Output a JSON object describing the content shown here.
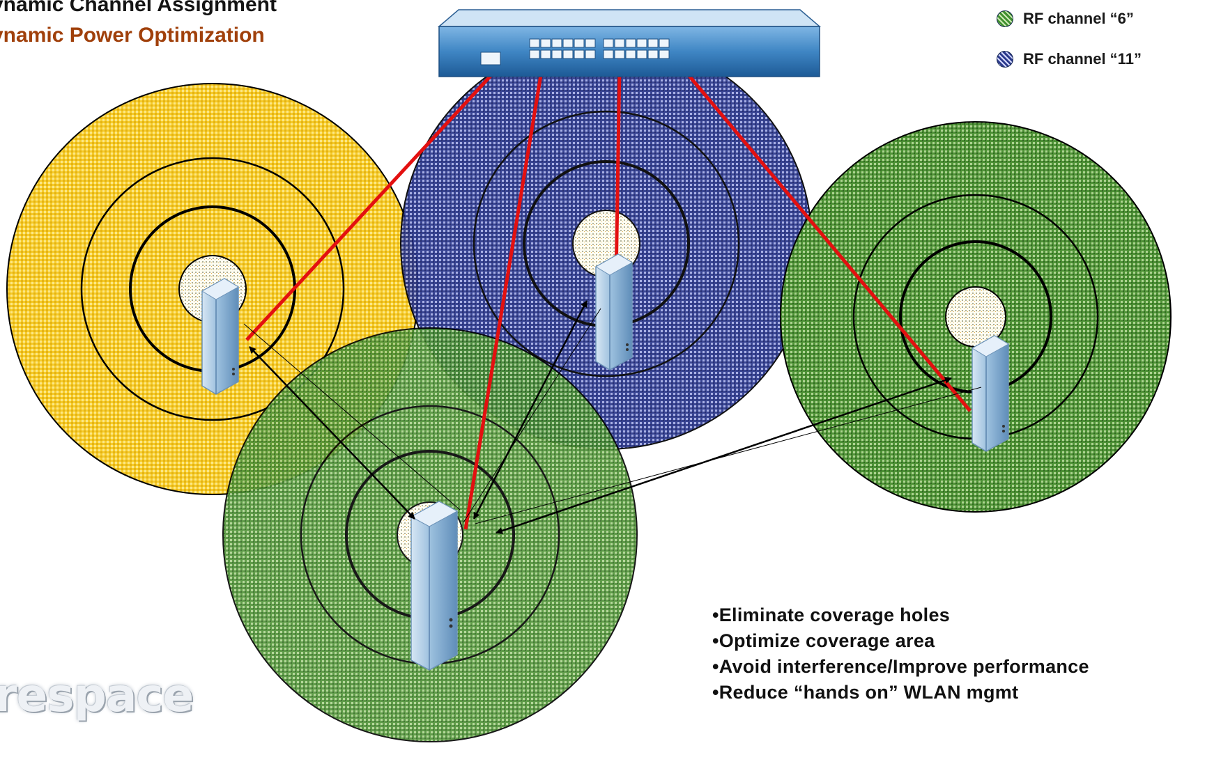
{
  "title": {
    "line1": "ynamic Channel Assignment",
    "line2": "ynamic Power Optimization"
  },
  "legend": {
    "items": [
      {
        "label": "RF channel “6”",
        "color": "#3f8f2e"
      },
      {
        "label": "RF channel “11”",
        "color": "#2b3a8c"
      }
    ]
  },
  "bullets": [
    "•Eliminate coverage holes",
    "•Optimize coverage area",
    "•Avoid interference/Improve performance",
    "•Reduce “hands on” WLAN mgmt"
  ],
  "logo": {
    "text": "respace"
  },
  "colors": {
    "yellow_cell": "#f0bd12",
    "blue_cell": "#2a3688",
    "green_cell": "#4a8d36",
    "wired_link": "#e31010",
    "title_accent": "#a0400b",
    "switch_body": "#3f86c4"
  },
  "icons": {
    "controller": "network-switch-icon",
    "access_point": "access-point-icon"
  }
}
